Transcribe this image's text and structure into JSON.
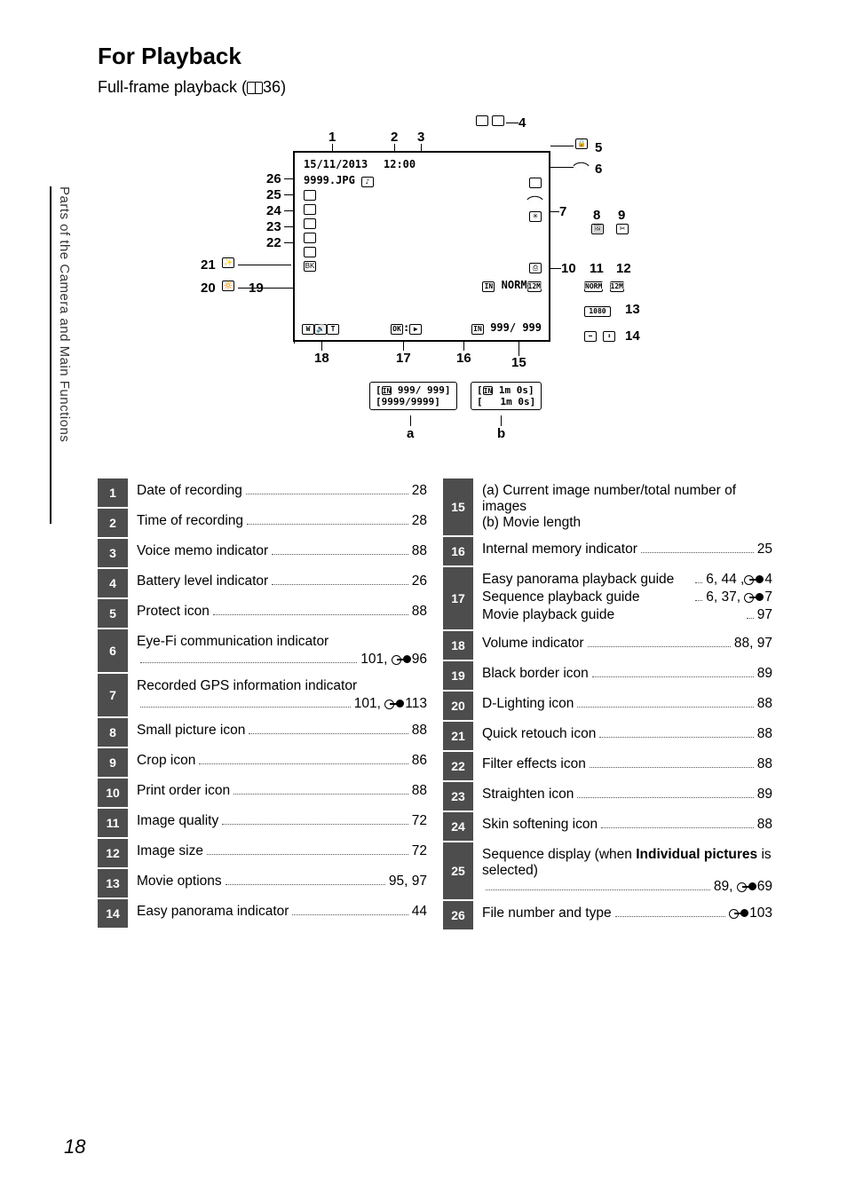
{
  "heading": "For Playback",
  "subhead_prefix": "Full-frame playback (",
  "subhead_page": "36)",
  "side_tab": "Parts of the Camera and Main Functions",
  "page_number": "18",
  "diagram": {
    "date": "15/11/2013",
    "time": "12:00",
    "file": "9999.JPG",
    "norm": "NORM",
    "counter": "999/ 999",
    "extra_a1": "999/ 999",
    "extra_a2": "9999/9999",
    "extra_b": "1m 0s",
    "label_a": "a",
    "label_b": "b",
    "side_norm": "NORM",
    "side_1080": "1080",
    "callouts": {
      "1": "1",
      "2": "2",
      "3": "3",
      "4": "4",
      "5": "5",
      "6": "6",
      "7": "7",
      "8": "8",
      "9": "9",
      "10": "10",
      "11": "11",
      "12": "12",
      "13": "13",
      "14": "14",
      "15": "15",
      "16": "16",
      "17": "17",
      "18": "18",
      "19": "19",
      "20": "20",
      "21": "21",
      "22": "22",
      "23": "23",
      "24": "24",
      "25": "25",
      "26": "26"
    }
  },
  "rows_left": [
    {
      "n": "1",
      "label": "Date of recording",
      "page": "28"
    },
    {
      "n": "2",
      "label": "Time of recording",
      "page": "28"
    },
    {
      "n": "3",
      "label": "Voice memo indicator",
      "page": "88"
    },
    {
      "n": "4",
      "label": "Battery level indicator",
      "page": "26"
    },
    {
      "n": "5",
      "label": "Protect icon",
      "page": "88"
    },
    {
      "n": "6",
      "label": "Eye-Fi communication indicator",
      "page": "101, ",
      "ref": "96",
      "multi": true
    },
    {
      "n": "7",
      "label": "Recorded GPS information indicator",
      "page": "101, ",
      "ref": "113",
      "multi": true
    },
    {
      "n": "8",
      "label": "Small picture icon",
      "page": "88"
    },
    {
      "n": "9",
      "label": "Crop icon",
      "page": "86"
    },
    {
      "n": "10",
      "label": "Print order icon",
      "page": "88"
    },
    {
      "n": "11",
      "label": "Image quality",
      "page": "72"
    },
    {
      "n": "12",
      "label": "Image size",
      "page": "72"
    },
    {
      "n": "13",
      "label": "Movie options",
      "page": "95, 97"
    },
    {
      "n": "14",
      "label": "Easy panorama indicator",
      "page": "44"
    }
  ],
  "rows_right": [
    {
      "n": "15",
      "label": "(a) Current image number/total number of images\n(b) Movie length",
      "plain": true
    },
    {
      "n": "16",
      "label": "Internal memory indicator",
      "page": "25"
    },
    {
      "n": "17",
      "multi_lines": [
        {
          "label": "Easy panorama playback guide",
          "page": "6, 44 ,",
          "ref": "4"
        },
        {
          "label": "Sequence playback guide",
          "page": "6, 37, ",
          "ref": "7"
        },
        {
          "label": "Movie playback guide",
          "page": "97"
        }
      ]
    },
    {
      "n": "18",
      "label": "Volume indicator",
      "page": "88, 97"
    },
    {
      "n": "19",
      "label": "Black border icon",
      "page": "89"
    },
    {
      "n": "20",
      "label": "D-Lighting icon",
      "page": "88"
    },
    {
      "n": "21",
      "label": "Quick retouch icon",
      "page": "88"
    },
    {
      "n": "22",
      "label": "Filter effects icon",
      "page": "88"
    },
    {
      "n": "23",
      "label": "Straighten icon",
      "page": "89"
    },
    {
      "n": "24",
      "label": "Skin softening icon",
      "page": "88"
    },
    {
      "n": "25",
      "html_label": "Sequence display (when <b>Individual pictures</b> is selected)",
      "page_pre": "89, ",
      "ref": "69"
    },
    {
      "n": "26",
      "label": "File number and type",
      "page": "",
      "ref": "103"
    }
  ]
}
